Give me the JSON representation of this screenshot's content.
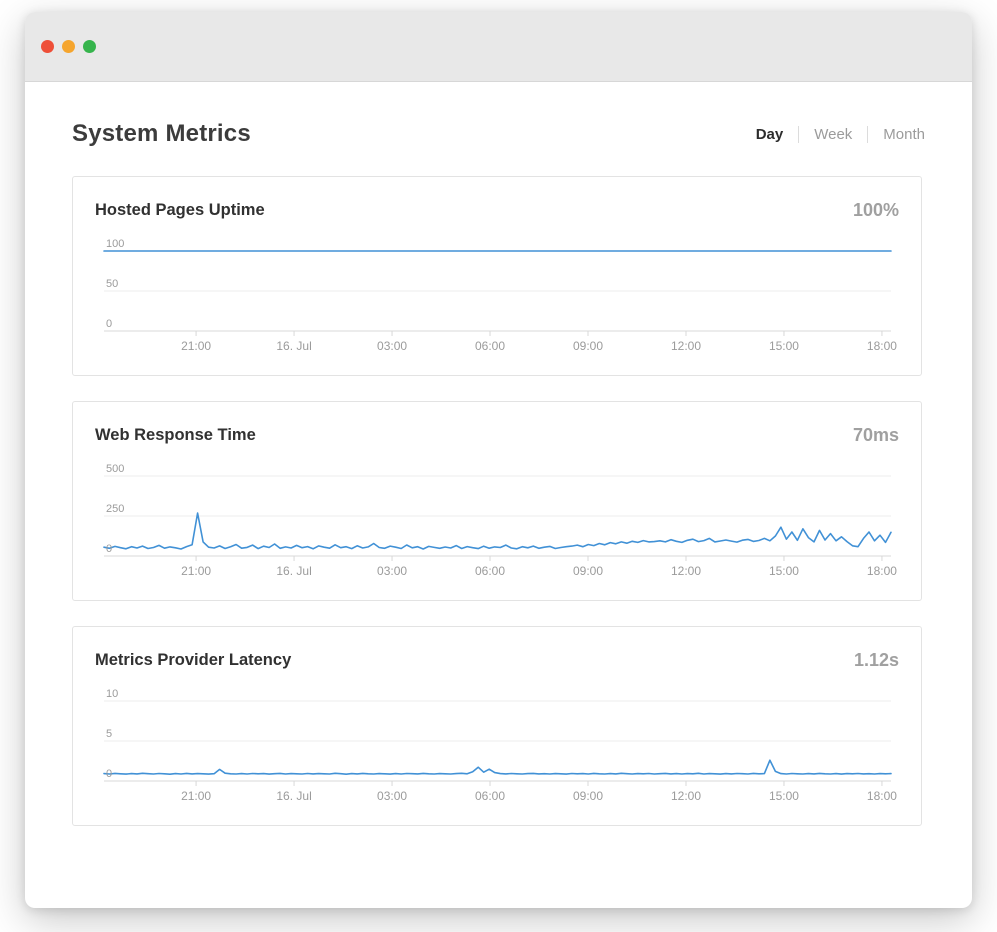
{
  "window": {
    "controls": [
      {
        "name": "close",
        "color": "#ee4f38"
      },
      {
        "name": "minimize",
        "color": "#f5a52e"
      },
      {
        "name": "zoom",
        "color": "#36b44c"
      }
    ]
  },
  "header": {
    "title": "System Metrics"
  },
  "tabs": [
    {
      "label": "Day",
      "active": true
    },
    {
      "label": "Week",
      "active": false
    },
    {
      "label": "Month",
      "active": false
    }
  ],
  "colors": {
    "line": "#4191d6",
    "grid_line": "#ececec",
    "axis_line": "#d8d8d8",
    "tick_text": "#9b9b9b",
    "active_tab_text": "#2d2d2d",
    "inactive_tab_text": "#9b9b9b"
  },
  "chart_data": [
    {
      "name": "hosted-pages-uptime",
      "type": "line",
      "title": "Hosted Pages Uptime",
      "value": "100%",
      "y_ticks": [
        0,
        50,
        100
      ],
      "ylim": [
        0,
        100
      ],
      "x_labels": [
        "21:00",
        "16. Jul",
        "03:00",
        "06:00",
        "09:00",
        "12:00",
        "15:00",
        "18:00"
      ],
      "values": [
        100,
        100,
        100,
        100,
        100,
        100,
        100,
        100,
        100,
        100,
        100,
        100,
        100,
        100,
        100,
        100,
        100,
        100,
        100,
        100,
        100,
        100,
        100,
        100,
        100,
        100,
        100,
        100,
        100,
        100,
        100,
        100,
        100,
        100,
        100,
        100,
        100,
        100,
        100,
        100,
        100,
        100,
        100,
        100,
        100,
        100,
        100,
        100,
        100,
        100
      ]
    },
    {
      "name": "web-response-time",
      "type": "line",
      "title": "Web Response Time",
      "value": "70ms",
      "y_ticks": [
        0,
        250,
        500
      ],
      "ylim": [
        0,
        500
      ],
      "x_labels": [
        "21:00",
        "16. Jul",
        "03:00",
        "06:00",
        "09:00",
        "12:00",
        "15:00",
        "18:00"
      ],
      "values": [
        55,
        48,
        60,
        52,
        45,
        58,
        50,
        62,
        47,
        53,
        66,
        49,
        57,
        51,
        44,
        59,
        70,
        268,
        88,
        55,
        50,
        63,
        47,
        58,
        72,
        49,
        54,
        68,
        46,
        61,
        53,
        75,
        48,
        57,
        50,
        66,
        52,
        59,
        45,
        63,
        55,
        49,
        70,
        52,
        58,
        46,
        64,
        50,
        57,
        78,
        53,
        48,
        62,
        55,
        47,
        69,
        51,
        58,
        44,
        60,
        54,
        48,
        56,
        50,
        65,
        47,
        59,
        52,
        46,
        61,
        49,
        57,
        53,
        68,
        50,
        45,
        58,
        51,
        62,
        48,
        55,
        60,
        47,
        53,
        58,
        62,
        68,
        58,
        72,
        65,
        78,
        70,
        84,
        76,
        88,
        80,
        92,
        85,
        96,
        88,
        90,
        95,
        88,
        102,
        92,
        85,
        98,
        105,
        90,
        96,
        110,
        88,
        94,
        100,
        93,
        87,
        99,
        104,
        91,
        97,
        110,
        95,
        125,
        180,
        105,
        150,
        98,
        170,
        115,
        88,
        160,
        100,
        140,
        95,
        120,
        90,
        64,
        58,
        110,
        150,
        95,
        130,
        85,
        148
      ]
    },
    {
      "name": "metrics-provider-latency",
      "type": "line",
      "title": "Metrics Provider Latency",
      "value": "1.12s",
      "y_ticks": [
        0,
        5,
        10
      ],
      "ylim": [
        0,
        10
      ],
      "x_labels": [
        "21:00",
        "16. Jul",
        "03:00",
        "06:00",
        "09:00",
        "12:00",
        "15:00",
        "18:00"
      ],
      "values": [
        0.92,
        0.88,
        0.95,
        0.9,
        0.86,
        0.93,
        0.89,
        0.96,
        0.91,
        0.87,
        0.94,
        0.9,
        0.85,
        0.92,
        0.88,
        0.95,
        0.89,
        0.93,
        0.9,
        0.86,
        0.91,
        1.45,
        0.97,
        0.9,
        0.87,
        0.93,
        0.88,
        0.94,
        0.9,
        0.92,
        0.86,
        0.91,
        0.95,
        0.88,
        0.92,
        0.9,
        0.87,
        0.94,
        0.89,
        0.93,
        0.9,
        0.88,
        0.96,
        0.91,
        0.85,
        0.92,
        0.89,
        0.95,
        0.9,
        0.87,
        0.93,
        0.9,
        0.86,
        0.92,
        0.88,
        0.94,
        0.91,
        0.89,
        0.95,
        0.9,
        0.87,
        0.92,
        0.9,
        0.88,
        0.93,
        0.96,
        0.9,
        1.15,
        1.72,
        1.1,
        1.48,
        1.05,
        0.92,
        0.89,
        0.94,
        0.9,
        0.87,
        0.92,
        0.95,
        0.89,
        0.91,
        0.88,
        0.93,
        0.9,
        0.86,
        0.94,
        0.9,
        0.92,
        0.88,
        0.95,
        0.9,
        0.87,
        0.93,
        0.89,
        0.96,
        0.91,
        0.88,
        0.92,
        0.9,
        0.94,
        0.88,
        0.91,
        0.95,
        0.89,
        0.92,
        0.87,
        0.93,
        0.9,
        0.96,
        0.88,
        0.92,
        0.9,
        0.86,
        0.93,
        0.89,
        0.94,
        0.91,
        0.87,
        0.95,
        0.9,
        0.93,
        2.6,
        1.2,
        0.92,
        0.88,
        0.94,
        0.9,
        0.87,
        0.93,
        0.89,
        0.95,
        0.9,
        0.88,
        0.92,
        0.86,
        0.93,
        0.9,
        0.94,
        0.89,
        0.91,
        0.88,
        0.93,
        0.9,
        0.92
      ]
    }
  ]
}
